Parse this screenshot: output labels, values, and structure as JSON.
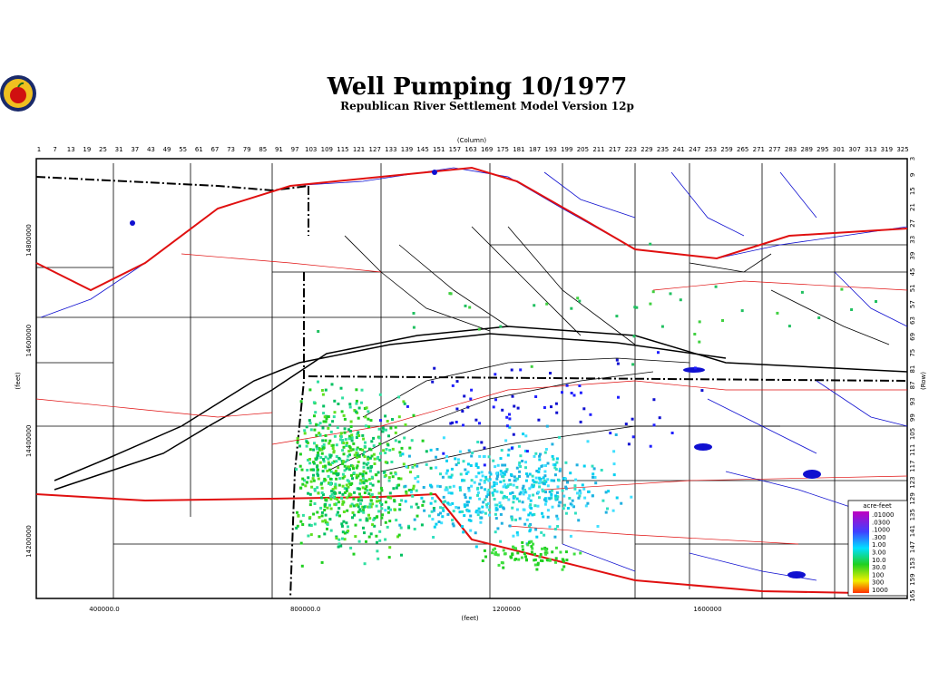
{
  "header": {
    "title": "Well Pumping 10/1977",
    "subtitle": "Republican River Settlement Model Version 12p"
  },
  "axes": {
    "column_label": "(Column)",
    "row_label": "(Row)",
    "x_feet_label": "(feet)",
    "y_feet_label": "(feet)",
    "columns": [
      1,
      7,
      13,
      19,
      25,
      31,
      37,
      43,
      49,
      55,
      61,
      67,
      73,
      79,
      85,
      91,
      97,
      103,
      109,
      115,
      121,
      127,
      133,
      139,
      145,
      151,
      157,
      163,
      169,
      175,
      181,
      187,
      193,
      199,
      205,
      211,
      217,
      223,
      229,
      235,
      241,
      247,
      253,
      259,
      265,
      271,
      277,
      283,
      289,
      295,
      301,
      307,
      313,
      319,
      325
    ],
    "rows": [
      3,
      9,
      15,
      21,
      27,
      33,
      39,
      45,
      51,
      57,
      63,
      69,
      75,
      81,
      87,
      93,
      99,
      105,
      111,
      117,
      123,
      129,
      135,
      141,
      147,
      153,
      159,
      165
    ],
    "x_feet": [
      {
        "value": 400000,
        "label": "400000.0"
      },
      {
        "value": 800000,
        "label": "800000.0"
      },
      1200000,
      1600000
    ],
    "y_feet": [
      14800000,
      14600000,
      14400000,
      14200000
    ]
  },
  "legend": {
    "title": "acre-feet",
    "labels": [
      ".01000",
      ".0300",
      ".1000",
      ".300",
      "1.00",
      "3.00",
      "10.0",
      "30.0",
      "100",
      "300",
      "1000"
    ]
  }
}
